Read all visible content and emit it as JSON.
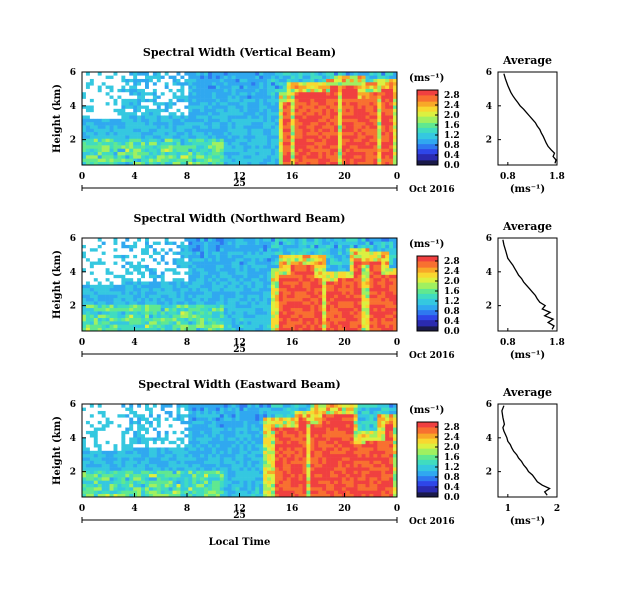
{
  "figure": {
    "xlabel": "Local Time",
    "date_day": "25",
    "date_label": "Oct 2016"
  },
  "colors": {
    "colormap": [
      "#1a1a4a",
      "#2a2ab0",
      "#2f46e8",
      "#2f78f0",
      "#30a8f0",
      "#35c8e0",
      "#40dcc0",
      "#60e890",
      "#a0f060",
      "#dcf040",
      "#f8d830",
      "#f8a828",
      "#f87030",
      "#f04040"
    ],
    "missing": "#ffffff",
    "average_line": "#000000"
  },
  "chart_data": [
    {
      "type": "heatmap",
      "title": "Spectral Width (Vertical Beam)",
      "ylabel": "Height (km)",
      "x_ticks": [
        "0",
        "4",
        "8",
        "12",
        "16",
        "20",
        "0"
      ],
      "xlim": [
        0,
        24
      ],
      "ylim": [
        0.5,
        6
      ],
      "y_ticks": [
        "2",
        "4",
        "6"
      ],
      "colorbar": {
        "unit": "(ms⁻¹)",
        "ticks": [
          "0.0",
          "0.4",
          "0.8",
          "1.2",
          "1.6",
          "2.0",
          "2.4",
          "2.8"
        ],
        "range": [
          0,
          3.0
        ]
      },
      "grid": false
    },
    {
      "type": "line",
      "title": "Average",
      "xlabel": "(ms⁻¹)",
      "x_ticks": [
        "0.8",
        "1.8"
      ],
      "xlim": [
        0.6,
        1.8
      ],
      "ylim": [
        0.5,
        6
      ],
      "y_ticks": [
        "2",
        "4",
        "6"
      ],
      "x": [
        1.76,
        1.78,
        1.72,
        1.75,
        1.68,
        1.62,
        1.58,
        1.55,
        1.52,
        1.48,
        1.45,
        1.4,
        1.36,
        1.3,
        1.24,
        1.18,
        1.12,
        1.05,
        1.0,
        0.95,
        0.9,
        0.86,
        0.8,
        0.75,
        0.72
      ],
      "y": [
        0.6,
        0.8,
        1.0,
        1.2,
        1.4,
        1.6,
        1.8,
        2.0,
        2.2,
        2.4,
        2.6,
        2.8,
        3.0,
        3.2,
        3.4,
        3.6,
        3.8,
        4.0,
        4.2,
        4.4,
        4.6,
        4.8,
        5.2,
        5.6,
        5.9
      ]
    },
    {
      "type": "heatmap",
      "title": "Spectral Width (Northward Beam)",
      "ylabel": "Height (km)",
      "x_ticks": [
        "0",
        "4",
        "8",
        "12",
        "16",
        "20",
        "0"
      ],
      "xlim": [
        0,
        24
      ],
      "ylim": [
        0.5,
        6
      ],
      "y_ticks": [
        "2",
        "4",
        "6"
      ],
      "colorbar": {
        "unit": "(ms⁻¹)",
        "ticks": [
          "0.0",
          "0.4",
          "0.8",
          "1.2",
          "1.6",
          "2.0",
          "2.4",
          "2.8"
        ],
        "range": [
          0,
          3.0
        ]
      },
      "grid": false
    },
    {
      "type": "line",
      "title": "Average",
      "xlabel": "(ms⁻¹)",
      "x_ticks": [
        "0.8",
        "1.8"
      ],
      "xlim": [
        0.6,
        1.8
      ],
      "ylim": [
        0.5,
        6
      ],
      "y_ticks": [
        "2",
        "4",
        "6"
      ],
      "x": [
        1.7,
        1.74,
        1.62,
        1.72,
        1.55,
        1.66,
        1.5,
        1.56,
        1.45,
        1.4,
        1.36,
        1.3,
        1.24,
        1.18,
        1.12,
        1.08,
        1.02,
        0.98,
        0.94,
        0.9,
        0.85,
        0.8,
        0.76,
        0.72,
        0.7
      ],
      "y": [
        0.6,
        0.8,
        1.0,
        1.2,
        1.4,
        1.6,
        1.8,
        2.0,
        2.2,
        2.4,
        2.6,
        2.8,
        3.0,
        3.2,
        3.4,
        3.6,
        3.8,
        4.0,
        4.2,
        4.4,
        4.6,
        4.8,
        5.2,
        5.6,
        5.9
      ]
    },
    {
      "type": "heatmap",
      "title": "Spectral Width (Eastward Beam)",
      "ylabel": "Height (km)",
      "x_ticks": [
        "0",
        "4",
        "8",
        "12",
        "16",
        "20",
        "0"
      ],
      "xlim": [
        0,
        24
      ],
      "ylim": [
        0.5,
        6
      ],
      "y_ticks": [
        "2",
        "4",
        "6"
      ],
      "colorbar": {
        "unit": "(ms⁻¹)",
        "ticks": [
          "0.0",
          "0.4",
          "0.8",
          "1.2",
          "1.6",
          "2.0",
          "2.4",
          "2.8"
        ],
        "range": [
          0,
          3.0
        ]
      },
      "grid": false
    },
    {
      "type": "line",
      "title": "Average",
      "xlabel": "(ms⁻¹)",
      "x_ticks": [
        "1",
        "2"
      ],
      "xlim": [
        0.8,
        2.0
      ],
      "ylim": [
        0.5,
        6
      ],
      "y_ticks": [
        "2",
        "4",
        "6"
      ],
      "x": [
        1.8,
        1.75,
        1.85,
        1.7,
        1.6,
        1.55,
        1.5,
        1.42,
        1.38,
        1.32,
        1.28,
        1.22,
        1.18,
        1.12,
        1.08,
        1.05,
        1.0,
        0.98,
        0.95,
        0.92,
        0.9,
        0.93,
        0.9,
        0.88,
        0.92
      ],
      "y": [
        0.6,
        0.8,
        1.0,
        1.2,
        1.4,
        1.6,
        1.8,
        2.0,
        2.2,
        2.4,
        2.6,
        2.8,
        3.0,
        3.2,
        3.4,
        3.6,
        3.8,
        4.0,
        4.2,
        4.4,
        4.6,
        4.8,
        5.2,
        5.6,
        5.9
      ]
    }
  ]
}
